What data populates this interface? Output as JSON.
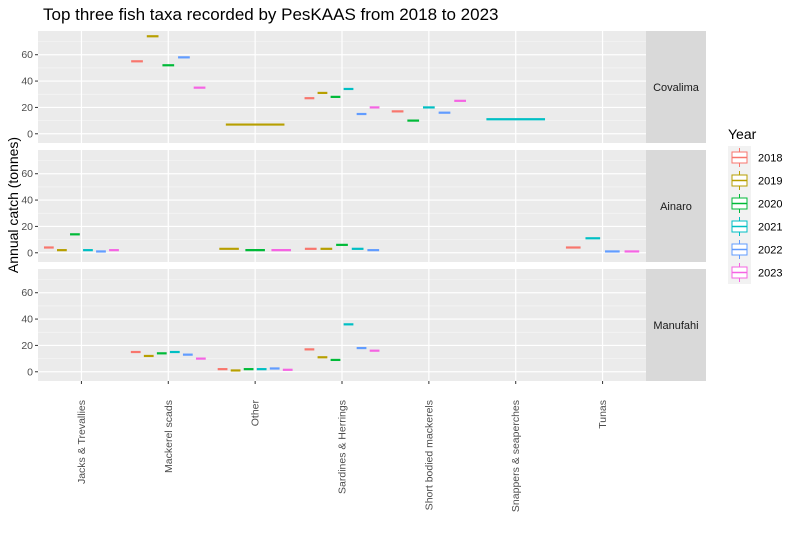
{
  "chart_data": {
    "type": "boxplot",
    "title": "Top three fish taxa recorded by PesKAAS from 2018 to 2023",
    "ylabel": "Annual catch (tonnes)",
    "xlabel": "",
    "ylim": [
      -7,
      78
    ],
    "yticks": [
      0,
      20,
      40,
      60
    ],
    "legend_title": "Year",
    "legend_position": "right",
    "grid": true,
    "categories": [
      "Jacks & Trevallies",
      "Mackerel scads",
      "Other",
      "Sardines & Herrings",
      "Short bodied mackerels",
      "Snappers & seaperches",
      "Tunas"
    ],
    "series_names": [
      "2018",
      "2019",
      "2020",
      "2021",
      "2022",
      "2023"
    ],
    "colors": [
      "#F8766D",
      "#B79F00",
      "#00BA38",
      "#00BFC4",
      "#619CFF",
      "#F564E3"
    ],
    "panels": [
      {
        "name": "Covalima",
        "points": [
          {
            "category": "Mackerel scads",
            "year": "2018",
            "value": 55
          },
          {
            "category": "Mackerel scads",
            "year": "2019",
            "value": 74
          },
          {
            "category": "Mackerel scads",
            "year": "2020",
            "value": 52
          },
          {
            "category": "Mackerel scads",
            "year": "2022",
            "value": 58
          },
          {
            "category": "Mackerel scads",
            "year": "2023",
            "value": 35
          },
          {
            "category": "Other",
            "year": "2019",
            "value": 7
          },
          {
            "category": "Sardines & Herrings",
            "year": "2018",
            "value": 27
          },
          {
            "category": "Sardines & Herrings",
            "year": "2019",
            "value": 31
          },
          {
            "category": "Sardines & Herrings",
            "year": "2020",
            "value": 28
          },
          {
            "category": "Sardines & Herrings",
            "year": "2021",
            "value": 34
          },
          {
            "category": "Sardines & Herrings",
            "year": "2022",
            "value": 15
          },
          {
            "category": "Sardines & Herrings",
            "year": "2023",
            "value": 20
          },
          {
            "category": "Short bodied mackerels",
            "year": "2018",
            "value": 17
          },
          {
            "category": "Short bodied mackerels",
            "year": "2020",
            "value": 10
          },
          {
            "category": "Short bodied mackerels",
            "year": "2021",
            "value": 20
          },
          {
            "category": "Short bodied mackerels",
            "year": "2022",
            "value": 16
          },
          {
            "category": "Short bodied mackerels",
            "year": "2023",
            "value": 25
          },
          {
            "category": "Snappers & seaperches",
            "year": "2021",
            "value": 11
          }
        ]
      },
      {
        "name": "Ainaro",
        "points": [
          {
            "category": "Jacks & Trevallies",
            "year": "2018",
            "value": 4
          },
          {
            "category": "Jacks & Trevallies",
            "year": "2019",
            "value": 2
          },
          {
            "category": "Jacks & Trevallies",
            "year": "2020",
            "value": 14
          },
          {
            "category": "Jacks & Trevallies",
            "year": "2021",
            "value": 2
          },
          {
            "category": "Jacks & Trevallies",
            "year": "2022",
            "value": 1
          },
          {
            "category": "Jacks & Trevallies",
            "year": "2023",
            "value": 2
          },
          {
            "category": "Other",
            "year": "2019",
            "value": 3
          },
          {
            "category": "Other",
            "year": "2020",
            "value": 2
          },
          {
            "category": "Other",
            "year": "2023",
            "value": 2
          },
          {
            "category": "Sardines & Herrings",
            "year": "2018",
            "value": 3
          },
          {
            "category": "Sardines & Herrings",
            "year": "2019",
            "value": 3
          },
          {
            "category": "Sardines & Herrings",
            "year": "2020",
            "value": 6
          },
          {
            "category": "Sardines & Herrings",
            "year": "2021",
            "value": 3
          },
          {
            "category": "Sardines & Herrings",
            "year": "2022",
            "value": 2
          },
          {
            "category": "Tunas",
            "year": "2018",
            "value": 4
          },
          {
            "category": "Tunas",
            "year": "2021",
            "value": 11
          },
          {
            "category": "Tunas",
            "year": "2022",
            "value": 1
          },
          {
            "category": "Tunas",
            "year": "2023",
            "value": 1
          }
        ]
      },
      {
        "name": "Manufahi",
        "points": [
          {
            "category": "Mackerel scads",
            "year": "2018",
            "value": 15
          },
          {
            "category": "Mackerel scads",
            "year": "2019",
            "value": 12
          },
          {
            "category": "Mackerel scads",
            "year": "2020",
            "value": 14
          },
          {
            "category": "Mackerel scads",
            "year": "2021",
            "value": 15
          },
          {
            "category": "Mackerel scads",
            "year": "2022",
            "value": 13
          },
          {
            "category": "Mackerel scads",
            "year": "2023",
            "value": 10
          },
          {
            "category": "Other",
            "year": "2018",
            "value": 2
          },
          {
            "category": "Other",
            "year": "2019",
            "value": 1
          },
          {
            "category": "Other",
            "year": "2020",
            "value": 2
          },
          {
            "category": "Other",
            "year": "2021",
            "value": 2
          },
          {
            "category": "Other",
            "year": "2022",
            "value": 2.5
          },
          {
            "category": "Other",
            "year": "2023",
            "value": 1.5
          },
          {
            "category": "Sardines & Herrings",
            "year": "2018",
            "value": 17
          },
          {
            "category": "Sardines & Herrings",
            "year": "2019",
            "value": 11
          },
          {
            "category": "Sardines & Herrings",
            "year": "2020",
            "value": 9
          },
          {
            "category": "Sardines & Herrings",
            "year": "2021",
            "value": 36
          },
          {
            "category": "Sardines & Herrings",
            "year": "2022",
            "value": 18
          },
          {
            "category": "Sardines & Herrings",
            "year": "2023",
            "value": 16
          }
        ]
      }
    ]
  }
}
